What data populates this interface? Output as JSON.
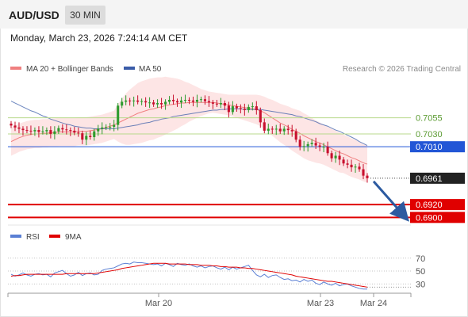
{
  "header": {
    "symbol": "AUD/USD",
    "timeframe": "30 MIN"
  },
  "datetime": "Monday, March 23, 2026 7:24:14 AM CET",
  "legend": {
    "ma20": "MA 20 + Bollinger Bands",
    "ma50": "MA 50",
    "copyright": "Research © 2026 Trading Central"
  },
  "rsi_legend": {
    "rsi": "RSI",
    "ma9": "9MA"
  },
  "colors": {
    "up": "#2e9b2e",
    "down": "#c8102e",
    "ma20": "#f08080",
    "ma50": "#3a5ca8",
    "band": "#fde0e0",
    "resistance": "#b8d98c",
    "pivot": "#2256d6",
    "support": "#e00000",
    "arrow": "#2c5aa0"
  },
  "chart_data": [
    {
      "type": "candlestick",
      "x_ticks": [
        "Mar 20",
        "Mar 23",
        "Mar 24"
      ],
      "levels": [
        {
          "label": "0.7055",
          "kind": "resistance"
        },
        {
          "label": "0.7030",
          "kind": "resistance"
        },
        {
          "label": "0.7010",
          "kind": "pivot"
        },
        {
          "label": "0.6961",
          "kind": "last"
        },
        {
          "label": "0.6920",
          "kind": "support"
        },
        {
          "label": "0.6900",
          "kind": "support"
        }
      ],
      "level_values": [
        0.7055,
        0.703,
        0.701,
        0.6961,
        0.692,
        0.69
      ],
      "ylim": [
        0.6893,
        0.712
      ],
      "closes": [
        0.7043,
        0.704,
        0.7038,
        0.7036,
        0.7035,
        0.7034,
        0.7036,
        0.7033,
        0.7034,
        0.7036,
        0.703,
        0.7034,
        0.7039,
        0.7037,
        0.7036,
        0.7035,
        0.7032,
        0.7031,
        0.7021,
        0.7027,
        0.7025,
        0.7034,
        0.7038,
        0.704,
        0.7041,
        0.7041,
        0.7044,
        0.7074,
        0.708,
        0.7082,
        0.7081,
        0.7082,
        0.708,
        0.7081,
        0.7079,
        0.7079,
        0.7076,
        0.7078,
        0.7076,
        0.708,
        0.7083,
        0.7081,
        0.7079,
        0.7082,
        0.7083,
        0.7082,
        0.708,
        0.7083,
        0.7084,
        0.7081,
        0.7079,
        0.7077,
        0.7076,
        0.7078,
        0.7074,
        0.7064,
        0.7073,
        0.707,
        0.7069,
        0.7067,
        0.7072,
        0.7073,
        0.7067,
        0.7048,
        0.7035,
        0.7038,
        0.7037,
        0.7038,
        0.7034,
        0.7038,
        0.7036,
        0.7034,
        0.7021,
        0.701,
        0.7011,
        0.7014,
        0.7016,
        0.7012,
        0.701,
        0.701,
        0.7,
        0.6992,
        0.6996,
        0.699,
        0.6984,
        0.6982,
        0.6978,
        0.6979,
        0.6975,
        0.6965,
        0.6961
      ],
      "ma20": [
        0.7018,
        0.7021,
        0.7024,
        0.7026,
        0.7028,
        0.7029,
        0.703,
        0.703,
        0.7031,
        0.7031,
        0.7032,
        0.7032,
        0.7033,
        0.7033,
        0.7033,
        0.7033,
        0.7033,
        0.7034,
        0.7034,
        0.7034,
        0.7035,
        0.7036,
        0.7037,
        0.7038,
        0.704,
        0.7042,
        0.7044,
        0.7047,
        0.705,
        0.7053,
        0.7056,
        0.7059,
        0.7062,
        0.7064,
        0.7066,
        0.7068,
        0.7069,
        0.7071,
        0.7072,
        0.7074,
        0.7075,
        0.7076,
        0.7077,
        0.7078,
        0.7078,
        0.7079,
        0.7079,
        0.7079,
        0.7079,
        0.7079,
        0.7079,
        0.7079,
        0.7078,
        0.7077,
        0.7076,
        0.7075,
        0.7074,
        0.7073,
        0.7072,
        0.7071,
        0.707,
        0.7069,
        0.7068,
        0.7066,
        0.7063,
        0.7059,
        0.7055,
        0.7051,
        0.7047,
        0.7044,
        0.7041,
        0.7037,
        0.7034,
        0.7031,
        0.7027,
        0.7024,
        0.7021,
        0.7018,
        0.7016,
        0.7013,
        0.701,
        0.7007,
        0.7004,
        0.7001,
        0.6999,
        0.6996,
        0.6993,
        0.6991,
        0.6988,
        0.6985,
        0.6983
      ],
      "ma50": [
        0.7081,
        0.7078,
        0.7075,
        0.7072,
        0.7069,
        0.7066,
        0.7064,
        0.7061,
        0.7058,
        0.7056,
        0.7053,
        0.7051,
        0.7049,
        0.7047,
        0.7045,
        0.7044,
        0.7042,
        0.7041,
        0.704,
        0.7039,
        0.7039,
        0.7038,
        0.7038,
        0.7038,
        0.7038,
        0.7038,
        0.7038,
        0.7039,
        0.704,
        0.7041,
        0.7042,
        0.7043,
        0.7044,
        0.7046,
        0.7047,
        0.7048,
        0.705,
        0.7051,
        0.7053,
        0.7054,
        0.7055,
        0.7057,
        0.7058,
        0.7059,
        0.706,
        0.7061,
        0.7062,
        0.7063,
        0.7064,
        0.7065,
        0.7066,
        0.7067,
        0.7067,
        0.7068,
        0.7068,
        0.7069,
        0.7069,
        0.7069,
        0.7069,
        0.7068,
        0.7068,
        0.7068,
        0.7068,
        0.7068,
        0.7067,
        0.7066,
        0.7065,
        0.7064,
        0.7063,
        0.7062,
        0.7061,
        0.706,
        0.7058,
        0.7057,
        0.7055,
        0.7053,
        0.7051,
        0.7049,
        0.7046,
        0.7044,
        0.7042,
        0.7039,
        0.7036,
        0.7034,
        0.7031,
        0.7028,
        0.7025,
        0.7022,
        0.7018,
        0.7015,
        0.7012
      ],
      "band_half_width": [
        0.0022,
        0.0022,
        0.0022,
        0.0022,
        0.0022,
        0.0022,
        0.0022,
        0.0022,
        0.0022,
        0.0022,
        0.0022,
        0.0022,
        0.0022,
        0.0022,
        0.0022,
        0.0022,
        0.0022,
        0.0022,
        0.0022,
        0.0022,
        0.0022,
        0.0022,
        0.0022,
        0.0022,
        0.0022,
        0.0022,
        0.0022,
        0.0029,
        0.0035,
        0.004,
        0.0043,
        0.0045,
        0.0047,
        0.0048,
        0.0048,
        0.0048,
        0.0048,
        0.0047,
        0.0046,
        0.0045,
        0.0043,
        0.0041,
        0.0039,
        0.0036,
        0.0033,
        0.003,
        0.0027,
        0.0024,
        0.0021,
        0.0019,
        0.0017,
        0.0016,
        0.0016,
        0.0016,
        0.0016,
        0.0016,
        0.0017,
        0.0018,
        0.0019,
        0.002,
        0.0021,
        0.0022,
        0.0023,
        0.0024,
        0.0025,
        0.0026,
        0.0028,
        0.0029,
        0.003,
        0.0031,
        0.0032,
        0.0033,
        0.0034,
        0.0035,
        0.0035,
        0.0035,
        0.0034,
        0.0033,
        0.0032,
        0.0031,
        0.0031,
        0.0031,
        0.0031,
        0.0031,
        0.003,
        0.003,
        0.003,
        0.003,
        0.0029,
        0.0029,
        0.0029
      ]
    },
    {
      "type": "line",
      "title": "RSI",
      "y_ticks": [
        "70",
        "50",
        "30"
      ],
      "y_tick_values": [
        70,
        50,
        30
      ],
      "ylim": [
        18,
        82
      ],
      "rsi": [
        45,
        42,
        44,
        47,
        44,
        42,
        45,
        46,
        44,
        45,
        41,
        47,
        49,
        51,
        46,
        42,
        44,
        48,
        43,
        46,
        47,
        44,
        45,
        51,
        53,
        54,
        55,
        58,
        61,
        62,
        61,
        64,
        63,
        63,
        62,
        61,
        60,
        61,
        58,
        62,
        60,
        57,
        62,
        60,
        59,
        61,
        58,
        56,
        58,
        55,
        57,
        58,
        55,
        53,
        56,
        52,
        56,
        53,
        55,
        57,
        59,
        51,
        44,
        41,
        45,
        40,
        43,
        44,
        40,
        37,
        38,
        35,
        36,
        33,
        37,
        34,
        36,
        31,
        29,
        33,
        30,
        28,
        31,
        27,
        29,
        30,
        27,
        25,
        23,
        22,
        22
      ],
      "ma9": [
        42,
        43,
        43,
        44,
        45,
        45,
        45,
        45,
        45,
        45,
        45,
        45,
        45,
        45,
        46,
        46,
        46,
        46,
        46,
        46,
        46,
        46,
        47,
        48,
        49,
        50,
        51,
        52,
        54,
        55,
        56,
        57,
        58,
        59,
        60,
        61,
        62,
        62,
        62,
        62,
        61,
        61,
        61,
        61,
        61,
        60,
        60,
        60,
        59,
        59,
        59,
        58,
        58,
        57,
        57,
        56,
        56,
        56,
        55,
        55,
        54,
        54,
        53,
        52,
        51,
        50,
        49,
        48,
        47,
        46,
        45,
        44,
        42,
        41,
        40,
        39,
        38,
        37,
        36,
        35,
        34,
        34,
        33,
        32,
        31,
        30,
        29,
        28,
        27,
        26,
        25
      ]
    }
  ]
}
